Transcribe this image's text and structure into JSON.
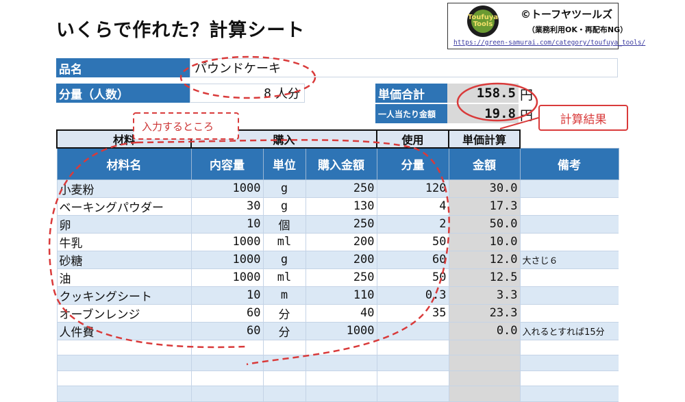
{
  "title": "いくらで作れた？計算シート",
  "brand": {
    "name": "©トーフヤツールズ",
    "terms": "（業務利用OK・再配布NG）",
    "url": "https://green-samurai.com/category/toufuya_tools/",
    "logo_text": "Toufuya Tools",
    "logo_color": "#6a9a32"
  },
  "product": {
    "label": "品名",
    "value": "パウンドケーキ"
  },
  "servings": {
    "label": "分量（人数）",
    "value": "8",
    "unit": "人分"
  },
  "summary": {
    "total_label": "単価合計",
    "total_value": "158.5",
    "total_unit": "円",
    "per_person_label": "一人当たり金額",
    "per_person_value": "19.8",
    "per_person_unit": "円"
  },
  "annotations": {
    "input_hint": "入力するところ",
    "result_hint": "計算結果",
    "accent": "#d93a3a"
  },
  "groups": {
    "materials": "材料",
    "purchase": "購入",
    "use": "使用",
    "unit_calc": "単価計算"
  },
  "columns": [
    "材料名",
    "内容量",
    "単位",
    "購入金額",
    "分量",
    "金額",
    "備考"
  ],
  "rows": [
    [
      "小麦粉",
      "1000",
      "g",
      "250",
      "120",
      "30.0",
      ""
    ],
    [
      "ベーキングパウダー",
      "30",
      "g",
      "130",
      "4",
      "17.3",
      ""
    ],
    [
      "卵",
      "10",
      "個",
      "250",
      "2",
      "50.0",
      ""
    ],
    [
      "牛乳",
      "1000",
      "ml",
      "200",
      "50",
      "10.0",
      ""
    ],
    [
      "砂糖",
      "1000",
      "g",
      "200",
      "60",
      "12.0",
      "大さじ６"
    ],
    [
      "油",
      "1000",
      "ml",
      "250",
      "50",
      "12.5",
      ""
    ],
    [
      "クッキングシート",
      "10",
      "m",
      "110",
      "0.3",
      "3.3",
      ""
    ],
    [
      "オーブンレンジ",
      "60",
      "分",
      "40",
      "35",
      "23.3",
      ""
    ],
    [
      "人件費",
      "60",
      "分",
      "1000",
      "",
      "0.0",
      "入れるとすれば15分"
    ],
    [
      "",
      "",
      "",
      "",
      "",
      "",
      ""
    ],
    [
      "",
      "",
      "",
      "",
      "",
      "",
      ""
    ],
    [
      "",
      "",
      "",
      "",
      "",
      "",
      ""
    ],
    [
      "",
      "",
      "",
      "",
      "",
      "",
      ""
    ]
  ],
  "colors": {
    "header_blue": "#2e74b5",
    "row_stripe": "#dbe8f5",
    "calc_gray": "#d8d8d8"
  }
}
